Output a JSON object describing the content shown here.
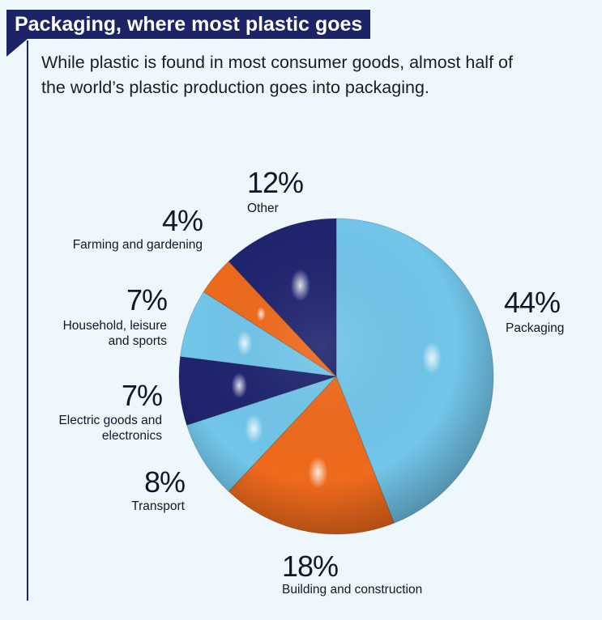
{
  "header": {
    "title": "Packaging, where most plastic goes",
    "subtitle": "While plastic is found in most consumer goods, almost half of the world’s plastic production goes into packaging."
  },
  "colors": {
    "light_blue": "#72c6ea",
    "orange": "#ef6a1c",
    "navy": "#1f2470",
    "accent": "#1c2466",
    "background": "#eef7fc"
  },
  "chart_data": {
    "type": "pie",
    "start": "12 o'clock, clockwise",
    "slices": [
      {
        "label": "Packaging",
        "value": 44,
        "display": "44%",
        "color": "#72c6ea"
      },
      {
        "label": "Building and construction",
        "value": 18,
        "display": "18%",
        "color": "#ef6a1c"
      },
      {
        "label": "Transport",
        "value": 8,
        "display": "8%",
        "color": "#72c6ea"
      },
      {
        "label": "Electric goods and electronics",
        "value": 7,
        "display": "7%",
        "color": "#1f2470"
      },
      {
        "label": "Household, leisure and sports",
        "value": 7,
        "display": "7%",
        "color": "#72c6ea"
      },
      {
        "label": "Farming and gardening",
        "value": 4,
        "display": "4%",
        "color": "#ef6a1c"
      },
      {
        "label": "Other",
        "value": 12,
        "display": "12%",
        "color": "#1f2470"
      }
    ]
  }
}
